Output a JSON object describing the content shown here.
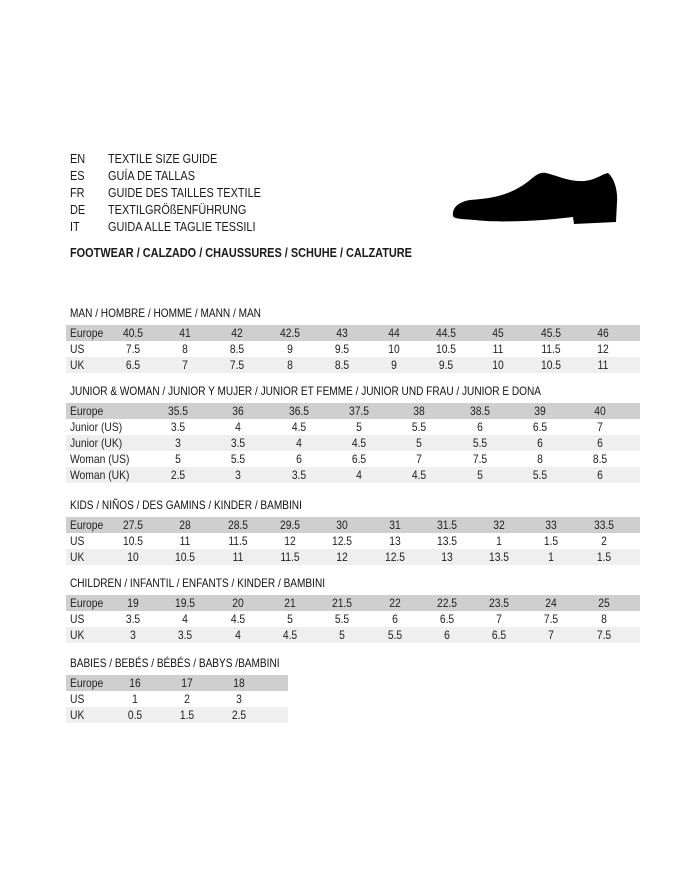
{
  "guide": {
    "lines": [
      {
        "lang": "EN",
        "text": "TEXTILE SIZE GUIDE"
      },
      {
        "lang": "ES",
        "text": "GUÍA DE TALLAS"
      },
      {
        "lang": "FR",
        "text": "GUIDE DES TAILLES TEXTILE"
      },
      {
        "lang": "DE",
        "text": "TEXTILGRÖßENFÜHRUNG"
      },
      {
        "lang": "IT",
        "text": "GUIDA ALLE TAGLIE TESSILI"
      }
    ],
    "footwear_title": "FOOTWEAR / CALZADO / CHAUSSURES / SCHUHE / CALZATURE",
    "icon": "shoe-silhouette-icon"
  },
  "colors": {
    "header_row": "#cfcfcf",
    "alt_row": "#efefef"
  },
  "tables": [
    {
      "title": "MAN / HOMBRE / HOMME / MANN / MAN",
      "rows": [
        {
          "label": "Europe",
          "values": [
            "40.5",
            "41",
            "42",
            "42.5",
            "43",
            "44",
            "44.5",
            "45",
            "45.5",
            "46"
          ]
        },
        {
          "label": "US",
          "values": [
            "7.5",
            "8",
            "8.5",
            "9",
            "9.5",
            "10",
            "10.5",
            "11",
            "11.5",
            "12"
          ]
        },
        {
          "label": "UK",
          "values": [
            "6.5",
            "7",
            "7.5",
            "8",
            "8.5",
            "9",
            "9.5",
            "10",
            "10.5",
            "11"
          ]
        }
      ]
    },
    {
      "title": "JUNIOR & WOMAN / JUNIOR Y MUJER / JUNIOR ET FEMME / JUNIOR UND FRAU / JUNIOR E DONA",
      "rows": [
        {
          "label": "Europe",
          "values": [
            "35.5",
            "36",
            "36.5",
            "37.5",
            "38",
            "38.5",
            "39",
            "40"
          ]
        },
        {
          "label": "Junior (US)",
          "values": [
            "3.5",
            "4",
            "4.5",
            "5",
            "5.5",
            "6",
            "6.5",
            "7"
          ]
        },
        {
          "label": "Junior (UK)",
          "values": [
            "3",
            "3.5",
            "4",
            "4.5",
            "5",
            "5.5",
            "6",
            "6"
          ]
        },
        {
          "label": "Woman (US)",
          "values": [
            "5",
            "5.5",
            "6",
            "6.5",
            "7",
            "7.5",
            "8",
            "8.5"
          ]
        },
        {
          "label": "Woman (UK)",
          "values": [
            "2.5",
            "3",
            "3.5",
            "4",
            "4.5",
            "5",
            "5.5",
            "6"
          ]
        }
      ]
    },
    {
      "title": "KIDS / NIÑOS / DES GAMINS / KINDER / BAMBINI",
      "rows": [
        {
          "label": "Europe",
          "values": [
            "27.5",
            "28",
            "28.5",
            "29.5",
            "30",
            "31",
            "31.5",
            "32",
            "33",
            "33.5"
          ]
        },
        {
          "label": "US",
          "values": [
            "10.5",
            "11",
            "11.5",
            "12",
            "12.5",
            "13",
            "13.5",
            "1",
            "1.5",
            "2"
          ]
        },
        {
          "label": "UK",
          "values": [
            "10",
            "10.5",
            "11",
            "11.5",
            "12",
            "12.5",
            "13",
            "13.5",
            "1",
            "1.5"
          ]
        }
      ]
    },
    {
      "title": "CHILDREN / INFANTIL / ENFANTS / KINDER / BAMBINI",
      "rows": [
        {
          "label": "Europe",
          "values": [
            "19",
            "19.5",
            "20",
            "21",
            "21.5",
            "22",
            "22.5",
            "23.5",
            "24",
            "25"
          ]
        },
        {
          "label": "US",
          "values": [
            "3.5",
            "4",
            "4.5",
            "5",
            "5.5",
            "6",
            "6.5",
            "7",
            "7.5",
            "8"
          ]
        },
        {
          "label": "UK",
          "values": [
            "3",
            "3.5",
            "4",
            "4.5",
            "5",
            "5.5",
            "6",
            "6.5",
            "7",
            "7.5"
          ]
        }
      ]
    },
    {
      "title": "BABIES  / BEBÉS / BÉBÉS / BABYS /BAMBINI",
      "rows": [
        {
          "label": "Europe",
          "values": [
            "16",
            "17",
            "18"
          ]
        },
        {
          "label": "US",
          "values": [
            "1",
            "2",
            "3"
          ]
        },
        {
          "label": "UK",
          "values": [
            "0.5",
            "1.5",
            "2.5"
          ]
        }
      ]
    }
  ]
}
